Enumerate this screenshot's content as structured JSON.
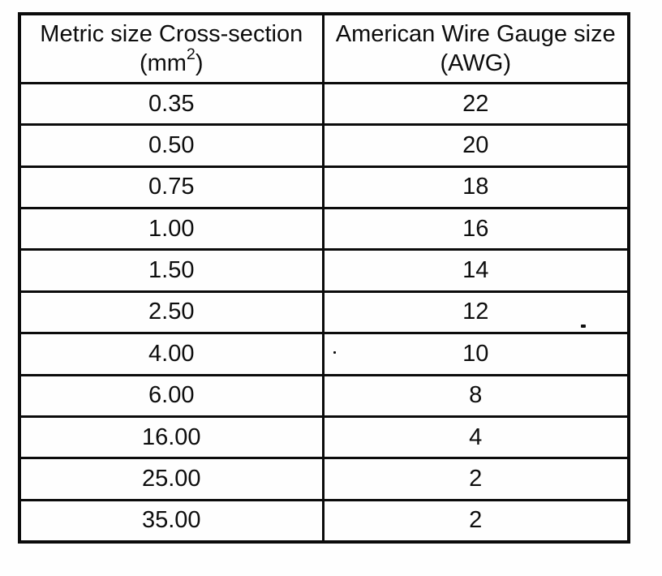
{
  "table": {
    "header": {
      "metric_title": "Metric size Cross-section",
      "metric_unit_base": "(mm",
      "metric_unit_sup": "2",
      "metric_unit_close": ")",
      "awg_title": "American Wire Gauge size",
      "awg_unit": "(AWG)"
    },
    "rows": [
      {
        "metric": "0.35",
        "awg": "22"
      },
      {
        "metric": "0.50",
        "awg": "20"
      },
      {
        "metric": "0.75",
        "awg": "18"
      },
      {
        "metric": "1.00",
        "awg": "16"
      },
      {
        "metric": "1.50",
        "awg": "14"
      },
      {
        "metric": "2.50",
        "awg": "12"
      },
      {
        "metric": "4.00",
        "awg": "10"
      },
      {
        "metric": "6.00",
        "awg": "8"
      },
      {
        "metric": "16.00",
        "awg": "4"
      },
      {
        "metric": "25.00",
        "awg": "2"
      },
      {
        "metric": "35.00",
        "awg": "2"
      }
    ]
  },
  "colors": {
    "ink": "#0b0b0b",
    "paper": "#fefefe"
  }
}
